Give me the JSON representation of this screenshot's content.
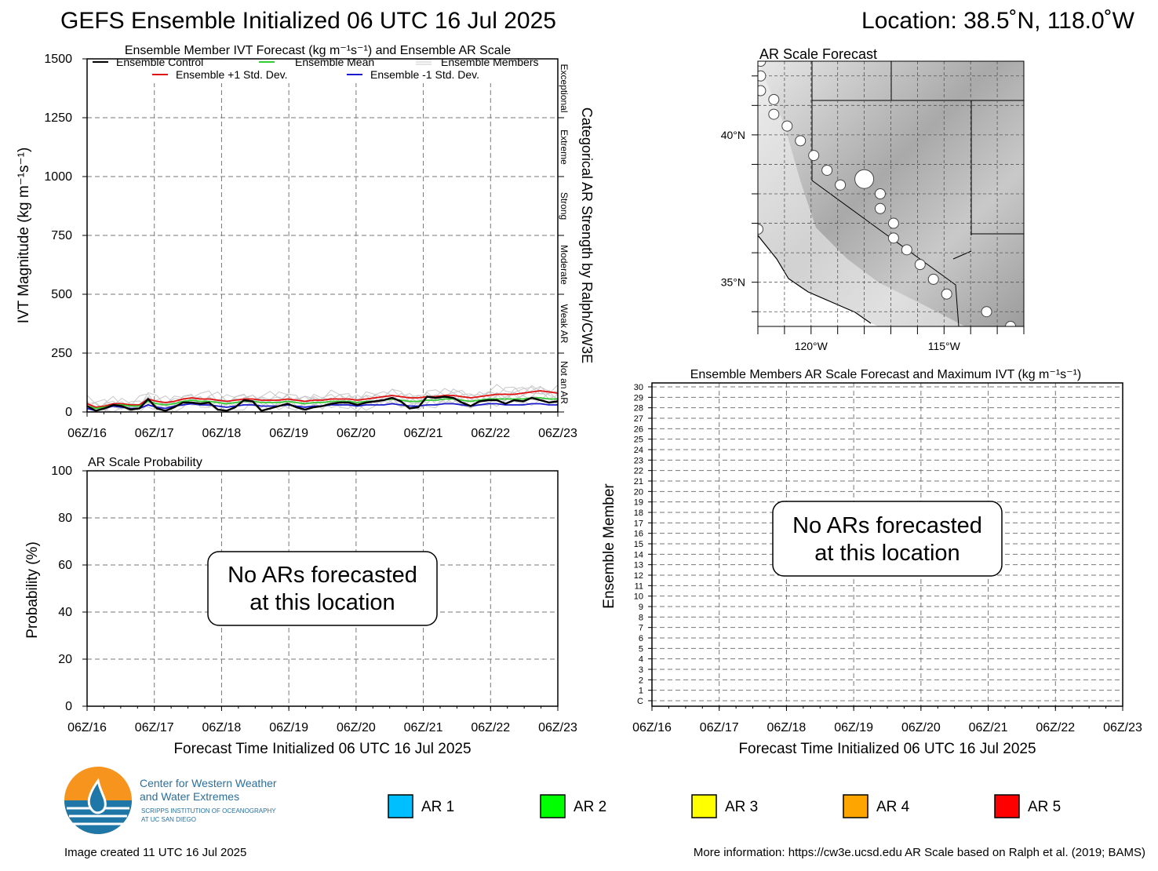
{
  "header": {
    "title": "GEFS Ensemble Initialized 06 UTC 16 Jul 2025",
    "location": "Location: 38.5˚N, 118.0˚W"
  },
  "chart_data": [
    {
      "id": "ivt",
      "type": "line",
      "title": "Ensemble Member IVT Forecast (kg m⁻¹s⁻¹) and Ensemble AR Scale",
      "ylabel": "IVT Magnitude (kg m⁻¹s⁻¹)",
      "right_label": "Categorical AR Strength by Ralph/CW3E",
      "ylim": [
        0,
        1500
      ],
      "yticks": [
        0,
        250,
        500,
        750,
        1000,
        1250,
        1500
      ],
      "xticks": [
        "06Z/16",
        "06Z/17",
        "06Z/18",
        "06Z/19",
        "06Z/20",
        "06Z/21",
        "06Z/22",
        "06Z/23"
      ],
      "grid": true,
      "legend_placement": "top",
      "ar_categories": [
        {
          "label": "Not an AR",
          "from": 0,
          "to": 250
        },
        {
          "label": "Weak AR",
          "from": 250,
          "to": 500
        },
        {
          "label": "Moderate",
          "from": 500,
          "to": 750
        },
        {
          "label": "Strong",
          "from": 750,
          "to": 1000
        },
        {
          "label": "Extreme",
          "from": 1000,
          "to": 1250
        },
        {
          "label": "Exceptional",
          "from": 1250,
          "to": 1500
        }
      ],
      "series": [
        {
          "name": "Ensemble Control",
          "color": "#000000",
          "values": [
            25,
            5,
            15,
            30,
            25,
            10,
            15,
            55,
            15,
            5,
            20,
            40,
            40,
            35,
            40,
            10,
            5,
            20,
            50,
            45,
            5,
            15,
            25,
            35,
            20,
            10,
            20,
            25,
            35,
            40,
            40,
            30,
            40,
            45,
            50,
            60,
            45,
            15,
            20,
            65,
            60,
            65,
            60,
            40,
            25,
            45,
            50,
            50,
            35,
            50,
            45,
            60,
            50,
            40,
            45
          ]
        },
        {
          "name": "Ensemble Mean",
          "color": "#33cc33",
          "values": [
            25,
            15,
            20,
            30,
            30,
            25,
            25,
            45,
            35,
            30,
            35,
            45,
            50,
            45,
            45,
            40,
            35,
            40,
            45,
            45,
            40,
            40,
            40,
            45,
            40,
            35,
            40,
            40,
            45,
            45,
            45,
            40,
            45,
            45,
            50,
            55,
            50,
            45,
            45,
            50,
            50,
            55,
            55,
            50,
            45,
            50,
            55,
            55,
            55,
            55,
            55,
            60,
            60,
            55,
            55
          ]
        },
        {
          "name": "Ensemble Members",
          "color": "#c8c8c8",
          "values": [
            40,
            20,
            30,
            40,
            35,
            30,
            35,
            60,
            45,
            40,
            45,
            60,
            70,
            55,
            60,
            55,
            50,
            55,
            65,
            60,
            55,
            55,
            60,
            65,
            55,
            50,
            60,
            55,
            65,
            60,
            60,
            55,
            65,
            65,
            70,
            80,
            65,
            60,
            60,
            75,
            70,
            75,
            80,
            70,
            60,
            70,
            80,
            85,
            80,
            90,
            85,
            95,
            100,
            90,
            85
          ]
        },
        {
          "name": "Ensemble +1 Std. Dev.",
          "color": "#e01010",
          "values": [
            35,
            20,
            25,
            35,
            35,
            30,
            30,
            55,
            45,
            40,
            45,
            55,
            60,
            55,
            55,
            50,
            45,
            50,
            55,
            55,
            50,
            50,
            50,
            55,
            50,
            45,
            50,
            50,
            55,
            55,
            55,
            50,
            55,
            60,
            65,
            70,
            65,
            60,
            60,
            65,
            65,
            70,
            70,
            65,
            60,
            65,
            70,
            75,
            75,
            75,
            80,
            85,
            90,
            85,
            80
          ]
        },
        {
          "name": "Ensemble -1 Std. Dev.",
          "color": "#1a1acc",
          "values": [
            15,
            5,
            15,
            25,
            20,
            15,
            15,
            30,
            20,
            15,
            25,
            30,
            35,
            30,
            30,
            25,
            20,
            25,
            30,
            30,
            25,
            25,
            25,
            30,
            25,
            20,
            25,
            25,
            30,
            30,
            30,
            25,
            30,
            30,
            30,
            35,
            30,
            25,
            25,
            30,
            30,
            35,
            35,
            30,
            25,
            30,
            35,
            35,
            30,
            30,
            30,
            35,
            35,
            30,
            30
          ]
        }
      ]
    },
    {
      "id": "prob",
      "type": "line",
      "title": "AR Scale Probability",
      "ylabel": "Probability (%)",
      "xlabel": "Forecast Time Initialized 06 UTC 16 Jul 2025",
      "ylim": [
        0,
        100
      ],
      "yticks": [
        0,
        20,
        40,
        60,
        80,
        100
      ],
      "xticks": [
        "06Z/16",
        "06Z/17",
        "06Z/18",
        "06Z/19",
        "06Z/20",
        "06Z/21",
        "06Z/22",
        "06Z/23"
      ],
      "grid": true,
      "annotation": [
        "No ARs forecasted",
        "at this location"
      ]
    },
    {
      "id": "members",
      "type": "heatmap",
      "title": "Ensemble Members AR Scale Forecast and Maximum IVT (kg m⁻¹s⁻¹)",
      "ylabel": "Ensemble Member",
      "xlabel": "Forecast Time Initialized 06 UTC 16 Jul 2025",
      "yticks": [
        "C",
        "1",
        "2",
        "3",
        "4",
        "5",
        "6",
        "7",
        "8",
        "9",
        "10",
        "11",
        "12",
        "13",
        "14",
        "15",
        "16",
        "17",
        "18",
        "19",
        "20",
        "21",
        "22",
        "23",
        "24",
        "25",
        "26",
        "27",
        "28",
        "29",
        "30"
      ],
      "xticks": [
        "06Z/16",
        "06Z/17",
        "06Z/18",
        "06Z/19",
        "06Z/20",
        "06Z/21",
        "06Z/22",
        "06Z/23"
      ],
      "grid": true,
      "annotation": [
        "No ARs forecasted",
        "at this location"
      ]
    },
    {
      "id": "map",
      "type": "scatter",
      "title": "AR Scale Forecast",
      "lat_labels": [
        "40°N",
        "35°N"
      ],
      "lon_labels": [
        "120°W",
        "115°W"
      ],
      "xlim": [
        -122,
        -112
      ],
      "ylim": [
        33.5,
        42.5
      ],
      "track_points": [
        {
          "lon": -121.9,
          "lat": 42.5
        },
        {
          "lon": -121.9,
          "lat": 42.0
        },
        {
          "lon": -121.9,
          "lat": 41.5
        },
        {
          "lon": -121.4,
          "lat": 41.2
        },
        {
          "lon": -121.4,
          "lat": 40.7
        },
        {
          "lon": -120.9,
          "lat": 40.3
        },
        {
          "lon": -120.4,
          "lat": 39.8
        },
        {
          "lon": -119.9,
          "lat": 39.3
        },
        {
          "lon": -119.4,
          "lat": 38.8
        },
        {
          "lon": -118.9,
          "lat": 38.3
        },
        {
          "lon": -118.0,
          "lat": 38.5,
          "current": true
        },
        {
          "lon": -117.4,
          "lat": 38.0
        },
        {
          "lon": -117.4,
          "lat": 37.5
        },
        {
          "lon": -116.9,
          "lat": 37.0
        },
        {
          "lon": -116.9,
          "lat": 36.5
        },
        {
          "lon": -116.4,
          "lat": 36.1
        },
        {
          "lon": -115.9,
          "lat": 35.6
        },
        {
          "lon": -115.4,
          "lat": 35.1
        },
        {
          "lon": -114.9,
          "lat": 34.6
        },
        {
          "lon": -113.4,
          "lat": 34.0
        },
        {
          "lon": -112.5,
          "lat": 33.5
        },
        {
          "lon": -122.0,
          "lat": 36.8
        }
      ]
    }
  ],
  "ar_legend": [
    {
      "label": "AR 1",
      "color": "#00bfff"
    },
    {
      "label": "AR 2",
      "color": "#00ff00"
    },
    {
      "label": "AR 3",
      "color": "#ffff00"
    },
    {
      "label": "AR 4",
      "color": "#ffa500"
    },
    {
      "label": "AR 5",
      "color": "#ff0000"
    }
  ],
  "logo": {
    "line1": "Center for Western Weather",
    "line2": "and Water Extremes",
    "line3": "SCRIPPS INSTITUTION OF OCEANOGRAPHY",
    "line4": "AT UC SAN DIEGO"
  },
  "footer": {
    "created": "Image created 11 UTC 16 Jul 2025",
    "info": "More information: https://cw3e.ucsd.edu AR Scale based on Ralph et al. (2019; BAMS)"
  }
}
